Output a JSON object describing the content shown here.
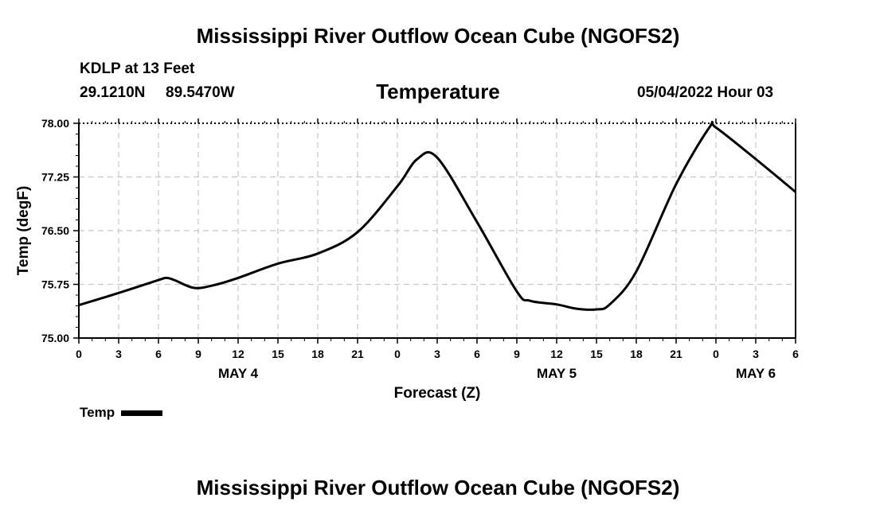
{
  "header": {
    "title": "Mississippi River Outflow Ocean Cube (NGOFS2)",
    "station": "KDLP at 13 Feet",
    "lat": "29.1210N",
    "lon": "89.5470W",
    "datetime": "05/04/2022 Hour 03"
  },
  "footer": {
    "title": "Mississippi River Outflow Ocean Cube (NGOFS2)"
  },
  "legend": {
    "label": "Temp"
  },
  "chart_data": {
    "type": "line",
    "title": "Temperature",
    "xlabel": "Forecast (Z)",
    "ylabel": "Temp (degF)",
    "xlim": [
      0,
      54
    ],
    "ylim": [
      75.0,
      78.0
    ],
    "y_ticks": [
      "75.00",
      "75.75",
      "76.50",
      "77.25",
      "78.00"
    ],
    "x_ticks": [
      {
        "hour": 0,
        "label": "0"
      },
      {
        "hour": 3,
        "label": "3"
      },
      {
        "hour": 6,
        "label": "6"
      },
      {
        "hour": 9,
        "label": "9"
      },
      {
        "hour": 12,
        "label": "12"
      },
      {
        "hour": 15,
        "label": "15"
      },
      {
        "hour": 18,
        "label": "18"
      },
      {
        "hour": 21,
        "label": "21"
      },
      {
        "hour": 24,
        "label": "0"
      },
      {
        "hour": 27,
        "label": "3"
      },
      {
        "hour": 30,
        "label": "6"
      },
      {
        "hour": 33,
        "label": "9"
      },
      {
        "hour": 36,
        "label": "12"
      },
      {
        "hour": 39,
        "label": "15"
      },
      {
        "hour": 42,
        "label": "18"
      },
      {
        "hour": 45,
        "label": "21"
      },
      {
        "hour": 48,
        "label": "0"
      },
      {
        "hour": 51,
        "label": "3"
      },
      {
        "hour": 54,
        "label": "6"
      }
    ],
    "day_labels": [
      {
        "hour": 12,
        "label": "MAY 4"
      },
      {
        "hour": 36,
        "label": "MAY 5"
      },
      {
        "hour": 51,
        "label": "MAY 6"
      }
    ],
    "grid": true,
    "series": [
      {
        "name": "Temp",
        "x": [
          0,
          3,
          6,
          6.6,
          7.2,
          8.7,
          10.2,
          12,
          15,
          18,
          21,
          24,
          25.5,
          27,
          30,
          33,
          34,
          36,
          37.5,
          39,
          40,
          42,
          45,
          47.5,
          48,
          51,
          54
        ],
        "y": [
          75.46,
          75.63,
          75.81,
          75.84,
          75.81,
          75.7,
          75.74,
          75.84,
          76.04,
          76.18,
          76.48,
          77.12,
          77.5,
          77.52,
          76.62,
          75.65,
          75.52,
          75.47,
          75.41,
          75.4,
          75.47,
          75.93,
          77.15,
          77.94,
          77.94,
          77.5,
          77.04
        ]
      }
    ]
  }
}
